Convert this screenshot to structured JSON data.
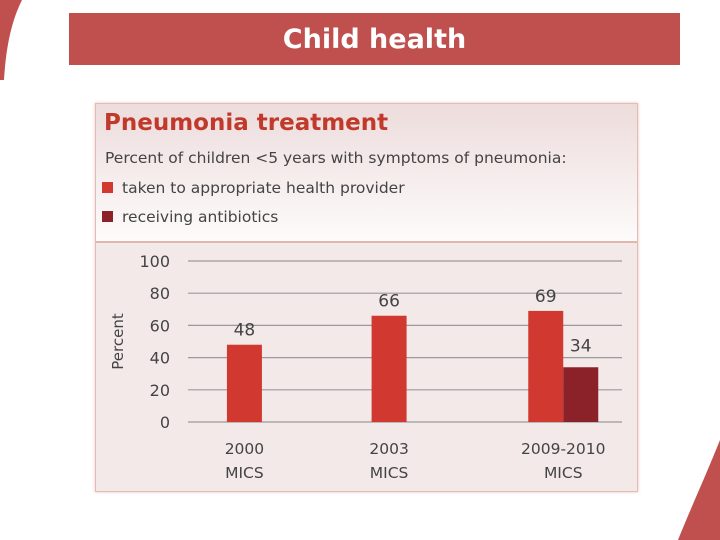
{
  "slide_title": "Child health",
  "colors": {
    "banner": "#c0504d",
    "series_provider": "#d13830",
    "series_antibiotics": "#8b2129",
    "title_red": "#c0392b"
  },
  "chart_data": {
    "type": "bar",
    "title": "Pneumonia treatment",
    "subtitle": "Percent of children <5 years with symptoms of pneumonia:",
    "categories": [
      [
        "2000",
        "MICS"
      ],
      [
        "2003",
        "MICS"
      ],
      [
        "2009-2010",
        "MICS"
      ]
    ],
    "series": [
      {
        "name": "taken to appropriate health provider",
        "color": "#d13830",
        "values": [
          48,
          66,
          69
        ]
      },
      {
        "name": "receiving antibiotics",
        "color": "#8b2129",
        "values": [
          null,
          null,
          34
        ]
      }
    ],
    "ylabel": "Percent",
    "ylim": [
      0,
      100
    ],
    "yticks": [
      0,
      20,
      40,
      60,
      80,
      100
    ],
    "grid": true,
    "legend_position": "top-left"
  }
}
